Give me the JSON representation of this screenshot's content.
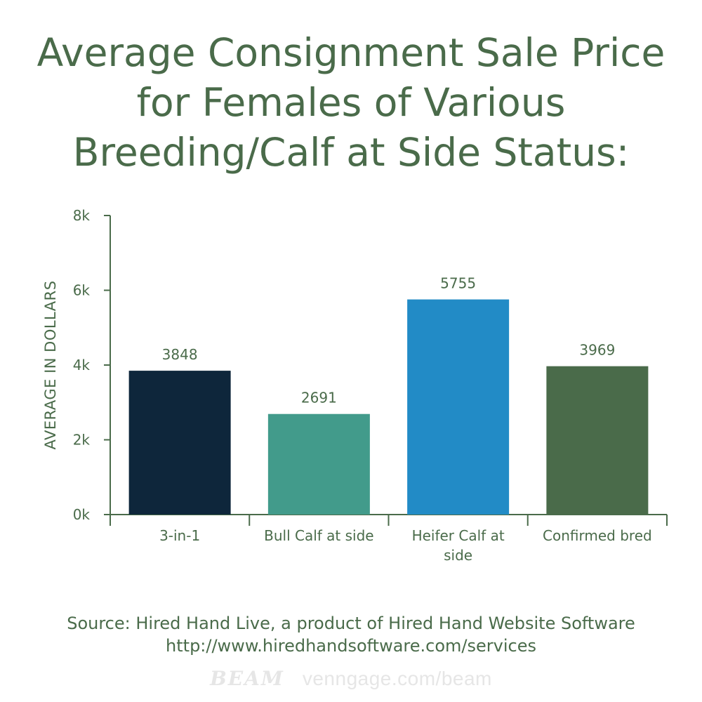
{
  "title_lines": [
    "Average Consignment Sale Price",
    "for Females of Various",
    "Breeding/Calf at Side Status:"
  ],
  "chart_data": {
    "type": "bar",
    "categories": [
      "3-in-1",
      "Bull Calf at side",
      "Heifer Calf at side",
      "Confirmed bred"
    ],
    "category_lines": [
      [
        "3-in-1"
      ],
      [
        "Bull Calf at side"
      ],
      [
        "Heifer Calf at",
        "side"
      ],
      [
        "Confirmed bred"
      ]
    ],
    "values": [
      3848,
      2691,
      5755,
      3969
    ],
    "value_labels": [
      "3848",
      "2691",
      "5755",
      "3969"
    ],
    "colors": [
      "#0e263b",
      "#429b8b",
      "#228bc6",
      "#4a6b4a"
    ],
    "ylabel": "AVERAGE IN DOLLARS",
    "xlabel": "",
    "ylim": [
      0,
      8000
    ],
    "yticks": [
      0,
      2000,
      4000,
      6000,
      8000
    ],
    "ytick_labels": [
      "0k",
      "2k",
      "4k",
      "6k",
      "8k"
    ],
    "grid": false
  },
  "source": {
    "line1": "Source: Hired Hand Live, a product of Hired Hand Website Software",
    "line2": "http://www.hiredhandsoftware.com/services"
  },
  "footer": {
    "brand": "BEAM",
    "url": "venngage.com/beam"
  },
  "colors": {
    "text": "#4a6b4a",
    "axis": "#4a6b4a",
    "watermark": "#e6e6e6"
  }
}
